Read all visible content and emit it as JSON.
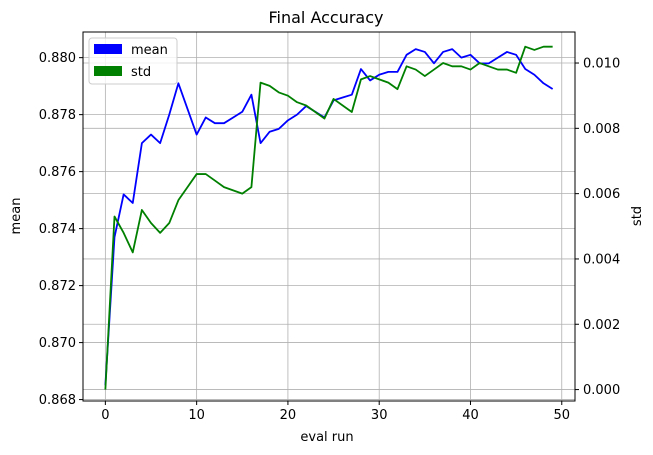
{
  "chart_data": {
    "type": "line",
    "title": "Final Accuracy",
    "xlabel": "eval run",
    "ylabel": "mean",
    "y2label": "std",
    "xlim": [
      -2.45,
      51.45
    ],
    "ylim": [
      0.86795,
      0.8809
    ],
    "y2lim": [
      -0.00035,
      0.01095
    ],
    "x_ticks": [
      "0",
      "10",
      "20",
      "30",
      "40",
      "50"
    ],
    "y_ticks": [
      "0.868",
      "0.870",
      "0.872",
      "0.874",
      "0.876",
      "0.878",
      "0.880"
    ],
    "y2_ticks": [
      "0.000",
      "0.002",
      "0.004",
      "0.006",
      "0.008",
      "0.010"
    ],
    "grid": true,
    "legend_position": "top-left",
    "series": [
      {
        "name": "mean",
        "axis": "left",
        "color": "#0000ff",
        "x": [
          0,
          1,
          2,
          3,
          4,
          5,
          6,
          7,
          8,
          9,
          10,
          11,
          12,
          13,
          14,
          15,
          16,
          17,
          18,
          19,
          20,
          21,
          22,
          23,
          24,
          25,
          26,
          27,
          28,
          29,
          30,
          31,
          32,
          33,
          34,
          35,
          36,
          37,
          38,
          39,
          40,
          41,
          42,
          43,
          44,
          45,
          46,
          47,
          48,
          49
        ],
        "values": [
          0.8685,
          0.8737,
          0.8752,
          0.8749,
          0.877,
          0.8773,
          0.877,
          0.878,
          0.8791,
          0.8782,
          0.8773,
          0.8779,
          0.8777,
          0.8777,
          0.8779,
          0.8781,
          0.8787,
          0.877,
          0.8774,
          0.8775,
          0.8778,
          0.878,
          0.8783,
          0.8781,
          0.8779,
          0.8785,
          0.8786,
          0.8787,
          0.8796,
          0.8792,
          0.8794,
          0.8795,
          0.8795,
          0.8801,
          0.8803,
          0.8802,
          0.8798,
          0.8802,
          0.8803,
          0.88,
          0.8801,
          0.8798,
          0.8798,
          0.88,
          0.8802,
          0.8801,
          0.8796,
          0.8794,
          0.8791,
          0.8789
        ]
      },
      {
        "name": "std",
        "axis": "right",
        "color": "#008000",
        "x": [
          0,
          1,
          2,
          3,
          4,
          5,
          6,
          7,
          8,
          9,
          10,
          11,
          12,
          13,
          14,
          15,
          16,
          17,
          18,
          19,
          20,
          21,
          22,
          23,
          24,
          25,
          26,
          27,
          28,
          29,
          30,
          31,
          32,
          33,
          34,
          35,
          36,
          37,
          38,
          39,
          40,
          41,
          42,
          43,
          44,
          45,
          46,
          47,
          48,
          49
        ],
        "values": [
          0.0,
          0.0053,
          0.0048,
          0.0042,
          0.0055,
          0.0051,
          0.0048,
          0.0051,
          0.0058,
          0.0062,
          0.0066,
          0.0066,
          0.0064,
          0.0062,
          0.0061,
          0.006,
          0.0062,
          0.0094,
          0.0093,
          0.0091,
          0.009,
          0.0088,
          0.0087,
          0.0085,
          0.0083,
          0.0089,
          0.0087,
          0.0085,
          0.0095,
          0.0096,
          0.0095,
          0.0094,
          0.0092,
          0.0099,
          0.0098,
          0.0096,
          0.0098,
          0.01,
          0.0099,
          0.0099,
          0.0098,
          0.01,
          0.0099,
          0.0098,
          0.0098,
          0.0097,
          0.0105,
          0.0104,
          0.0105,
          0.0105
        ]
      }
    ]
  }
}
